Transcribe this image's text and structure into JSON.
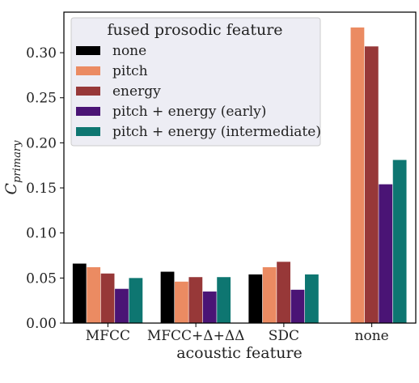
{
  "chart_data": {
    "type": "bar",
    "title": "",
    "xlabel": "acoustic feature",
    "ylabel": "C",
    "ylabel_subscript": "primary",
    "ylim": [
      0,
      0.345
    ],
    "yticks": [
      0.0,
      0.05,
      0.1,
      0.15,
      0.2,
      0.25,
      0.3
    ],
    "ytick_labels": [
      "0.00",
      "0.05",
      "0.10",
      "0.15",
      "0.20",
      "0.25",
      "0.30"
    ],
    "categories": [
      "MFCC",
      "MFCC+Δ+ΔΔ",
      "SDC",
      "none"
    ],
    "legend": {
      "title": "fused prosodic feature",
      "placement": "top-left"
    },
    "grid": false,
    "series": [
      {
        "name": "none",
        "color": "#000000",
        "values": [
          0.066,
          0.057,
          0.054,
          null
        ]
      },
      {
        "name": "pitch",
        "color": "#EB8B62",
        "values": [
          0.062,
          0.046,
          0.062,
          0.328
        ]
      },
      {
        "name": "energy",
        "color": "#973838",
        "values": [
          0.055,
          0.051,
          0.068,
          0.307
        ]
      },
      {
        "name": "pitch + energy (early)",
        "color": "#4A1475",
        "values": [
          0.038,
          0.035,
          0.037,
          0.154
        ]
      },
      {
        "name": "pitch + energy (intermediate)",
        "color": "#0E7671",
        "values": [
          0.05,
          0.051,
          0.054,
          0.181
        ]
      }
    ]
  }
}
